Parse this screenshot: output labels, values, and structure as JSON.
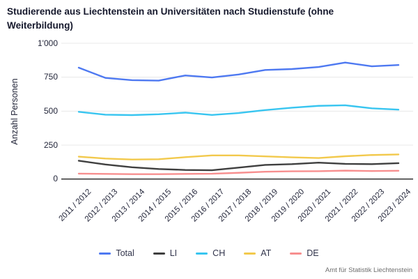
{
  "title": {
    "line1": "Studierende aus Liechtenstein an Universitäten nach Studienstufe (ohne",
    "line2": "Weiterbildung)"
  },
  "footer": {
    "source": "Amt für Statistik Liechtenstein"
  },
  "colors": {
    "total": "#4e79f1",
    "li": "#3f3f3f",
    "ch": "#38c5f0",
    "at": "#f2c94c",
    "de": "#f78f8f",
    "grid": "#e8e8e8",
    "axis": "#3c3c3c"
  },
  "chart_data": {
    "type": "line",
    "title": "Studierende aus Liechtenstein an Universitäten nach Studienstufe (ohne Weiterbildung)",
    "xlabel": "",
    "ylabel": "Anzahl Personen",
    "ylim": [
      0,
      1000
    ],
    "yticks": [
      0,
      250,
      500,
      750,
      1000
    ],
    "ytick_labels": [
      "0",
      "250",
      "500",
      "750",
      "1'000"
    ],
    "grid": true,
    "legend_position": "bottom",
    "categories": [
      "2011 / 2012",
      "2012 / 2013",
      "2013 / 2014",
      "2014 / 2015",
      "2015 / 2016",
      "2016 / 2017",
      "2017 / 2018",
      "2018 / 2019",
      "2019 / 2020",
      "2020 / 2021",
      "2021 / 2022",
      "2022 / 2023",
      "2023 / 2024"
    ],
    "series": [
      {
        "name": "Total",
        "color_key": "total",
        "values": [
          820,
          745,
          728,
          725,
          763,
          748,
          770,
          803,
          810,
          825,
          858,
          830,
          840
        ]
      },
      {
        "name": "LI",
        "color_key": "li",
        "values": [
          135,
          107,
          87,
          74,
          67,
          65,
          84,
          104,
          110,
          121,
          112,
          110,
          117
        ]
      },
      {
        "name": "CH",
        "color_key": "ch",
        "values": [
          495,
          474,
          471,
          477,
          489,
          472,
          486,
          508,
          525,
          539,
          543,
          521,
          511
        ]
      },
      {
        "name": "AT",
        "color_key": "at",
        "values": [
          165,
          151,
          144,
          146,
          161,
          174,
          174,
          167,
          160,
          155,
          168,
          177,
          181
        ]
      },
      {
        "name": "DE",
        "color_key": "de",
        "values": [
          40,
          38,
          36,
          36,
          38,
          39,
          46,
          54,
          57,
          58,
          62,
          59,
          61
        ]
      }
    ]
  }
}
